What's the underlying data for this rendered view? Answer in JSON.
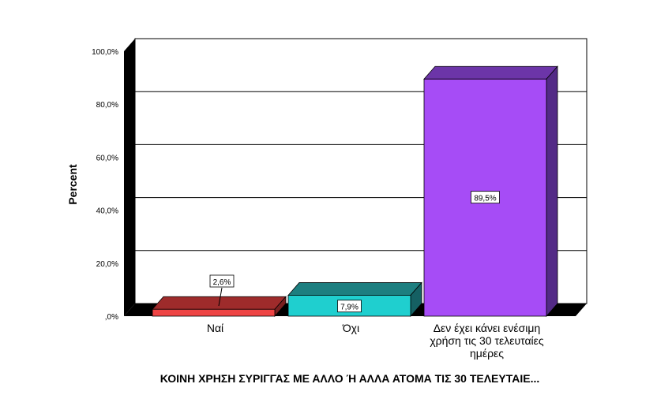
{
  "chart_data": {
    "type": "bar",
    "xlabel": "ΚΟΙΝΗ ΧΡΗΣΗ ΣΥΡΙΓΓΑΣ ΜΕ ΑΛΛΟ Ή ΑΛΛΑ ΑΤΟΜΑ ΤΙΣ 30 ΤΕΛΕΥΤΑΙΕ...",
    "ylabel": "Percent",
    "ylim": [
      0,
      100
    ],
    "yticks": [
      0,
      20,
      40,
      60,
      80,
      100
    ],
    "ytick_labels": [
      ",0%",
      "20,0%",
      "40,0%",
      "60,0%",
      "80,0%",
      "100,0%"
    ],
    "categories": [
      [
        "Ναί"
      ],
      [
        "Όχι"
      ],
      [
        "Δεν έχει κάνει ενέσιμη",
        "χρήση τις 30 τελευταίες",
        "ημέρες"
      ]
    ],
    "values": [
      2.6,
      7.9,
      89.5
    ],
    "data_labels": [
      "2,6%",
      "7,9%",
      "89,5%"
    ],
    "colors": {
      "front": [
        "#ee4444",
        "#1fcfcf",
        "#a64cf6"
      ],
      "top": [
        "#9e2b2b",
        "#1d7f80",
        "#6c35a8"
      ],
      "side": [
        "#7a2020",
        "#156063",
        "#532a86"
      ]
    },
    "grid": true,
    "legend": "none"
  }
}
